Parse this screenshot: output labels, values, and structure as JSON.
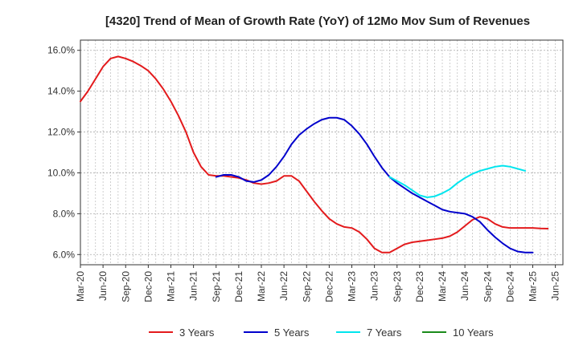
{
  "chart_data": {
    "type": "line",
    "title": "[4320]  Trend of Mean of Growth Rate (YoY) of 12Mo Mov Sum of Revenues",
    "xlabel": "",
    "ylabel": "",
    "ylim": [
      5.5,
      16.5
    ],
    "yticks": [
      6.0,
      8.0,
      10.0,
      12.0,
      14.0,
      16.0
    ],
    "ytick_labels": [
      "6.0%",
      "8.0%",
      "10.0%",
      "12.0%",
      "14.0%",
      "16.0%"
    ],
    "xtick_labels": [
      "Mar-20",
      "Jun-20",
      "Sep-20",
      "Dec-20",
      "Mar-21",
      "Jun-21",
      "Sep-21",
      "Dec-21",
      "Mar-22",
      "Jun-22",
      "Sep-22",
      "Dec-22",
      "Mar-23",
      "Jun-23",
      "Sep-23",
      "Dec-23",
      "Mar-24",
      "Jun-24",
      "Sep-24",
      "Dec-24",
      "Mar-25",
      "Jun-25"
    ],
    "x_start": "Mar-20",
    "months_count": 64,
    "grid": true,
    "legend_position": "bottom",
    "series": [
      {
        "name": "3 Years",
        "color": "#e31a1c",
        "start_index": 0,
        "values": [
          13.5,
          14.0,
          14.6,
          15.2,
          15.6,
          15.7,
          15.6,
          15.45,
          15.25,
          15.0,
          14.6,
          14.1,
          13.5,
          12.8,
          12.0,
          11.0,
          10.3,
          9.9,
          9.85,
          9.85,
          9.8,
          9.75,
          9.65,
          9.5,
          9.45,
          9.5,
          9.6,
          9.85,
          9.85,
          9.6,
          9.1,
          8.6,
          8.15,
          7.75,
          7.5,
          7.35,
          7.3,
          7.1,
          6.75,
          6.3,
          6.1,
          6.1,
          6.3,
          6.5,
          6.6,
          6.65,
          6.7,
          6.75,
          6.8,
          6.9,
          7.1,
          7.4,
          7.7,
          7.85,
          7.75,
          7.5,
          7.35,
          7.3,
          7.3,
          7.3,
          7.3,
          7.28,
          7.27
        ]
      },
      {
        "name": "5 Years",
        "color": "#0000cc",
        "start_index": 18,
        "values": [
          9.8,
          9.9,
          9.9,
          9.8,
          9.6,
          9.55,
          9.65,
          9.9,
          10.3,
          10.8,
          11.4,
          11.85,
          12.15,
          12.4,
          12.6,
          12.7,
          12.7,
          12.6,
          12.3,
          11.9,
          11.4,
          10.8,
          10.25,
          9.8,
          9.5,
          9.25,
          9.0,
          8.8,
          8.6,
          8.4,
          8.2,
          8.1,
          8.05,
          8.0,
          7.85,
          7.6,
          7.2,
          6.85,
          6.55,
          6.3,
          6.15,
          6.1,
          6.1
        ]
      },
      {
        "name": "7 Years",
        "color": "#00e5ee",
        "start_index": 41,
        "values": [
          9.8,
          9.6,
          9.4,
          9.15,
          8.9,
          8.8,
          8.85,
          9.0,
          9.2,
          9.5,
          9.75,
          9.95,
          10.1,
          10.2,
          10.3,
          10.35,
          10.3,
          10.2,
          10.1
        ]
      },
      {
        "name": "10 Years",
        "color": "#1a8a1a",
        "start_index": 0,
        "values": []
      }
    ]
  }
}
